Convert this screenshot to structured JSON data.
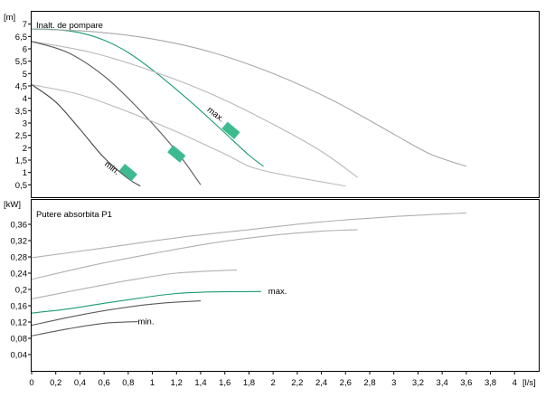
{
  "chart_data": [
    {
      "type": "line",
      "title": "Inalt. de pompare",
      "ylabel": "[m]",
      "xlabel": "[l/s]",
      "xlim": [
        0,
        4.2
      ],
      "ylim": [
        0,
        7.5
      ],
      "yticks": [
        "7",
        "6,5",
        "6",
        "5,5",
        "5",
        "4,5",
        "4",
        "3,5",
        "3",
        "2,5",
        "2",
        "1,5",
        "1",
        "0,5"
      ],
      "ytick_values": [
        7,
        6.5,
        6,
        5.5,
        5,
        4.5,
        4,
        3.5,
        3,
        2.5,
        2,
        1.5,
        1,
        0.5
      ],
      "grid": false,
      "highlight_color": "#1a9b73",
      "marker_color": "#3dbb8f",
      "curve_labels": [
        {
          "text": "max.",
          "x": 1.45,
          "y": 3.5
        },
        {
          "text": "min.",
          "x": 0.6,
          "y": 1.3
        }
      ],
      "markers": [
        {
          "x": 1.65,
          "y": 2.7
        },
        {
          "x": 1.2,
          "y": 1.75
        },
        {
          "x": 0.8,
          "y": 1.0
        }
      ],
      "series": [
        {
          "color": "#1a9b73",
          "x": [
            0,
            0.2,
            0.4,
            0.6,
            0.8,
            1.0,
            1.2,
            1.4,
            1.6,
            1.8,
            1.92
          ],
          "y": [
            6.8,
            6.78,
            6.65,
            6.35,
            5.85,
            5.15,
            4.35,
            3.5,
            2.6,
            1.7,
            1.25
          ]
        },
        {
          "color": "#a8a8a8",
          "x": [
            0,
            0.5,
            1.0,
            1.5,
            2.0,
            2.5,
            3.0,
            3.3,
            3.6
          ],
          "y": [
            6.8,
            6.7,
            6.4,
            5.85,
            5.0,
            3.9,
            2.55,
            1.75,
            1.25
          ]
        },
        {
          "color": "#b8b8b8",
          "x": [
            0,
            0.5,
            1.0,
            1.5,
            2.0,
            2.4,
            2.7
          ],
          "y": [
            6.3,
            5.85,
            5.1,
            4.15,
            2.95,
            1.85,
            0.8
          ]
        },
        {
          "color": "#5a5a5a",
          "x": [
            0,
            0.3,
            0.6,
            0.9,
            1.2,
            1.4
          ],
          "y": [
            6.3,
            5.85,
            4.9,
            3.5,
            1.85,
            0.5
          ]
        },
        {
          "color": "#b8b8b8",
          "x": [
            0,
            0.4,
            0.8,
            1.2,
            1.6,
            1.9,
            2.6
          ],
          "y": [
            4.55,
            4.15,
            3.45,
            2.65,
            1.75,
            1.1,
            0.45
          ]
        },
        {
          "color": "#444444",
          "x": [
            0,
            0.2,
            0.4,
            0.6,
            0.8,
            0.9
          ],
          "y": [
            4.55,
            3.85,
            2.75,
            1.6,
            0.75,
            0.45
          ]
        }
      ]
    },
    {
      "type": "line",
      "title": "Putere absorbita P1",
      "ylabel": "[kW]",
      "xlabel": "[l/s]",
      "xlim": [
        0,
        4.2
      ],
      "ylim": [
        0,
        0.42
      ],
      "yticks": [
        "0,36",
        "0,32",
        "0,28",
        "0,24",
        "0,2",
        "0,16",
        "0,12",
        "0,08",
        "0,04"
      ],
      "ytick_values": [
        0.36,
        0.32,
        0.28,
        0.24,
        0.2,
        0.16,
        0.12,
        0.08,
        0.04
      ],
      "xticks": [
        "0",
        "0,2",
        "0,4",
        "0,6",
        "0,8",
        "1",
        "1,2",
        "1,4",
        "1,6",
        "1,8",
        "2",
        "2,2",
        "2,4",
        "2,6",
        "2,8",
        "3",
        "3,2",
        "3,4",
        "3,6",
        "3,8",
        "4"
      ],
      "xtick_values": [
        0,
        0.2,
        0.4,
        0.6,
        0.8,
        1.0,
        1.2,
        1.4,
        1.6,
        1.8,
        2.0,
        2.2,
        2.4,
        2.6,
        2.8,
        3.0,
        3.2,
        3.4,
        3.6,
        3.8,
        4.0
      ],
      "grid": false,
      "curve_labels": [
        {
          "text": "max.",
          "x": 1.96,
          "y": 0.196
        },
        {
          "text": "min.",
          "x": 0.88,
          "y": 0.121
        }
      ],
      "series": [
        {
          "color": "#1a9b73",
          "x": [
            0,
            0.3,
            0.6,
            0.9,
            1.2,
            1.5,
            1.9
          ],
          "y": [
            0.142,
            0.152,
            0.166,
            0.179,
            0.19,
            0.194,
            0.195
          ]
        },
        {
          "color": "#b0b0b0",
          "x": [
            0,
            0.6,
            1.2,
            1.8,
            2.4,
            3.0,
            3.6
          ],
          "y": [
            0.278,
            0.302,
            0.327,
            0.347,
            0.366,
            0.379,
            0.388
          ]
        },
        {
          "color": "#b0b0b0",
          "x": [
            0,
            0.5,
            1.0,
            1.5,
            2.0,
            2.4,
            2.7
          ],
          "y": [
            0.225,
            0.259,
            0.288,
            0.314,
            0.333,
            0.343,
            0.347
          ]
        },
        {
          "color": "#b0b0b0",
          "x": [
            0,
            0.4,
            0.8,
            1.2,
            1.7
          ],
          "y": [
            0.177,
            0.2,
            0.222,
            0.24,
            0.248
          ]
        },
        {
          "color": "#5a5a5a",
          "x": [
            0,
            0.4,
            0.8,
            1.1,
            1.4
          ],
          "y": [
            0.112,
            0.137,
            0.157,
            0.167,
            0.172
          ]
        },
        {
          "color": "#5a5a5a",
          "x": [
            0,
            0.3,
            0.6,
            0.88
          ],
          "y": [
            0.086,
            0.103,
            0.117,
            0.121
          ]
        }
      ]
    }
  ]
}
